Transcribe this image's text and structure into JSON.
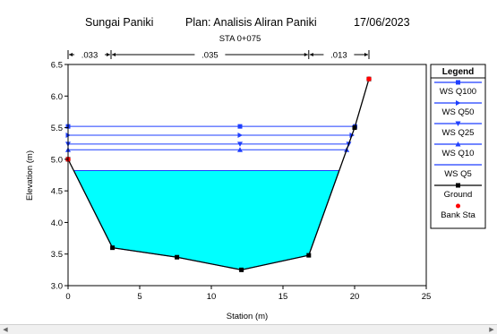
{
  "chart_data": {
    "type": "cross-section",
    "title_left": "Sungai Paniki",
    "title_plan": "Plan: Analisis Aliran Paniki",
    "title_date": "17/06/2023",
    "subtitle": "STA 0+075",
    "xlabel": "Station (m)",
    "ylabel": "Elevation (m)",
    "xlim": [
      0,
      25
    ],
    "ylim": [
      3.0,
      6.5
    ],
    "x_ticks": [
      "0",
      "5",
      "10",
      "15",
      "20",
      "25"
    ],
    "y_ticks": [
      "3.0",
      "3.5",
      "4.0",
      "4.5",
      "5.0",
      "5.5",
      "6.0",
      "6.5"
    ],
    "manning_n": [
      {
        "label": ".033",
        "from": 0,
        "to": 3
      },
      {
        "label": ".035",
        "from": 3,
        "to": 16.8
      },
      {
        "label": ".013",
        "from": 16.8,
        "to": 21
      }
    ],
    "ground": {
      "x": [
        0,
        3.1,
        7.6,
        12.1,
        16.8,
        20,
        21
      ],
      "y": [
        5.0,
        3.6,
        3.45,
        3.25,
        3.48,
        5.5,
        6.27
      ]
    },
    "bank_stations": [
      {
        "x": 0,
        "y": 5.0
      },
      {
        "x": 21,
        "y": 6.27
      }
    ],
    "water_surfaces": [
      {
        "name": "WS Q100",
        "elevation": 5.52,
        "marker": "square"
      },
      {
        "name": "WS Q50",
        "elevation": 5.38,
        "marker": "arrow"
      },
      {
        "name": "WS Q25",
        "elevation": 5.24,
        "marker": "down-triangle"
      },
      {
        "name": "WS Q10",
        "elevation": 5.15,
        "marker": "up-triangle"
      },
      {
        "name": "WS Q5",
        "elevation": 4.82,
        "marker": "none",
        "filled": true
      }
    ],
    "legend_title": "Legend",
    "legend_ground": "Ground",
    "legend_bank": "Bank Sta",
    "legend_position": "right",
    "colors": {
      "ws_line": "#1f3fff",
      "water_fill": "#00ffff",
      "ground": "#000000",
      "bank": "#ff0000"
    }
  }
}
